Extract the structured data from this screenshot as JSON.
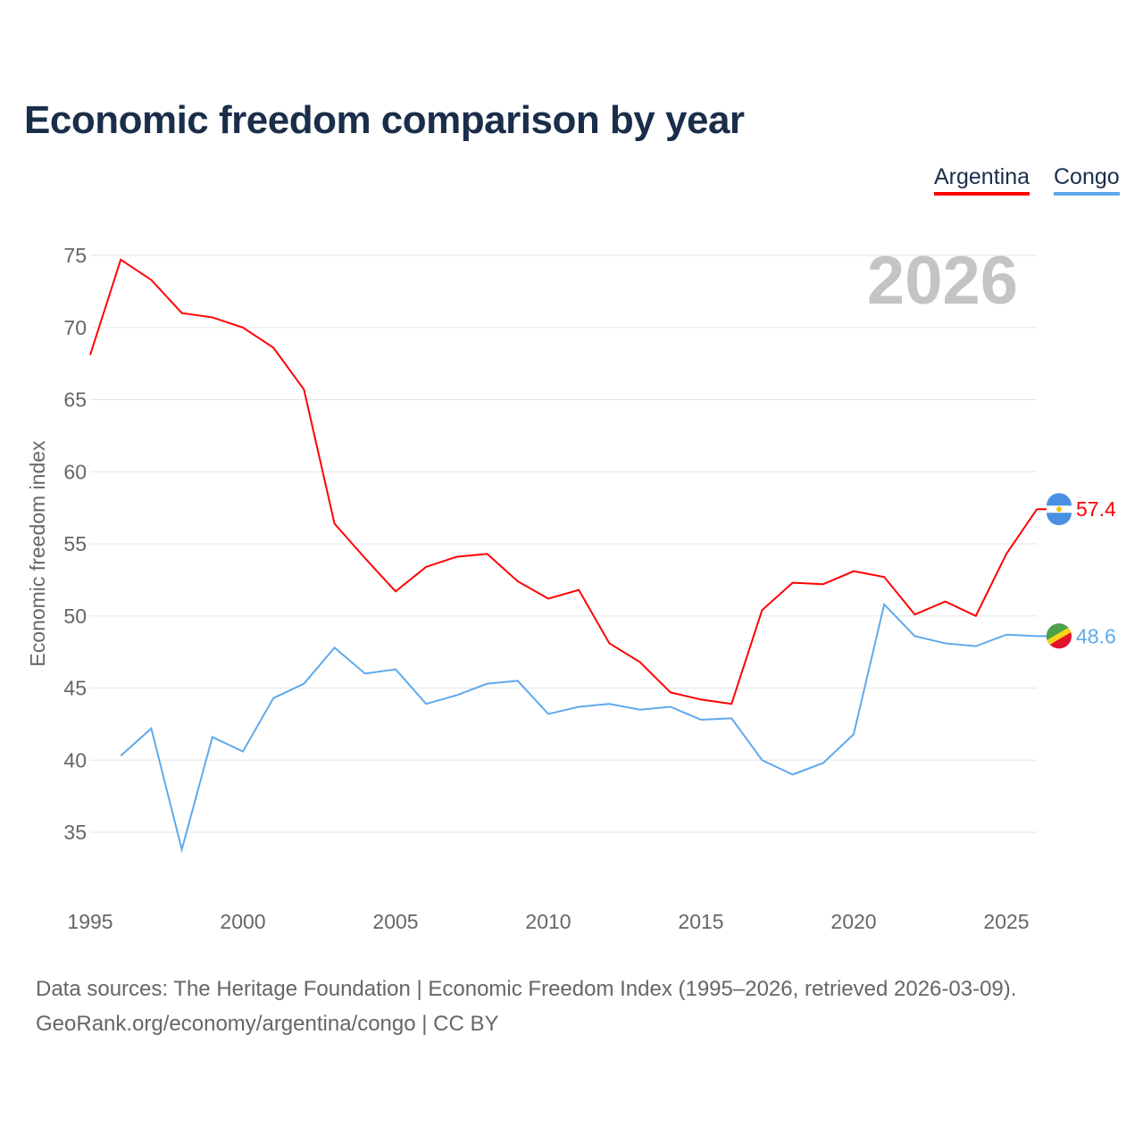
{
  "title": "Economic freedom comparison by year",
  "year_watermark": "2026",
  "footer": {
    "line1": "Data sources: The Heritage Foundation | Economic Freedom Index (1995–2026, retrieved 2026-03-09).",
    "line2": "GeoRank.org/economy/argentina/congo | CC BY"
  },
  "chart_data": {
    "type": "line",
    "title": "Economic freedom comparison by year",
    "xlabel": "",
    "ylabel": "Economic freedom index",
    "xlim": [
      1995,
      2026
    ],
    "ylim": [
      30,
      77
    ],
    "x_ticks": [
      1995,
      2000,
      2005,
      2010,
      2015,
      2020,
      2025
    ],
    "y_ticks": [
      35,
      40,
      45,
      50,
      55,
      60,
      65,
      70,
      75
    ],
    "grid": true,
    "legend_position": "top-right",
    "series": [
      {
        "name": "Argentina",
        "color": "#ff0000",
        "end_label": "57.4",
        "x": [
          1995,
          1996,
          1997,
          1998,
          1999,
          2000,
          2001,
          2002,
          2003,
          2004,
          2005,
          2006,
          2007,
          2008,
          2009,
          2010,
          2011,
          2012,
          2013,
          2014,
          2015,
          2016,
          2017,
          2018,
          2019,
          2020,
          2021,
          2022,
          2023,
          2024,
          2025,
          2026
        ],
        "values": [
          68.1,
          74.7,
          73.3,
          71.0,
          70.7,
          70.0,
          68.6,
          65.7,
          56.4,
          54.0,
          51.7,
          53.4,
          54.1,
          54.3,
          52.4,
          51.2,
          51.8,
          48.1,
          46.8,
          44.7,
          44.2,
          43.9,
          50.4,
          52.3,
          52.2,
          53.1,
          52.7,
          50.1,
          51.0,
          50.0,
          54.3,
          57.4
        ]
      },
      {
        "name": "Congo",
        "color": "#5ea9ec",
        "end_label": "48.6",
        "x": [
          1996,
          1997,
          1998,
          1999,
          2000,
          2001,
          2002,
          2003,
          2004,
          2005,
          2006,
          2007,
          2008,
          2009,
          2010,
          2011,
          2012,
          2013,
          2014,
          2015,
          2016,
          2017,
          2018,
          2019,
          2020,
          2021,
          2022,
          2023,
          2024,
          2025,
          2026
        ],
        "values": [
          40.3,
          42.2,
          33.8,
          41.6,
          40.6,
          44.3,
          45.3,
          47.8,
          46.0,
          46.3,
          43.9,
          44.5,
          45.3,
          45.5,
          43.2,
          43.7,
          43.9,
          43.5,
          43.7,
          42.8,
          42.9,
          40.0,
          39.0,
          39.8,
          41.8,
          50.8,
          48.6,
          48.1,
          47.9,
          48.7,
          48.6
        ]
      }
    ]
  }
}
